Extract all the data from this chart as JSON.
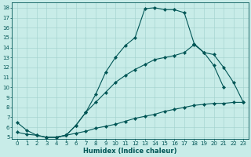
{
  "xlabel": "Humidex (Indice chaleur)",
  "bg_color": "#c8ece8",
  "grid_color": "#a0d0cc",
  "line_color": "#005555",
  "xlim": [
    -0.5,
    23.5
  ],
  "ylim": [
    4.8,
    18.5
  ],
  "yticks": [
    5,
    6,
    7,
    8,
    9,
    10,
    11,
    12,
    13,
    14,
    15,
    16,
    17,
    18
  ],
  "xticks": [
    0,
    1,
    2,
    3,
    4,
    5,
    6,
    7,
    8,
    9,
    10,
    11,
    12,
    13,
    14,
    15,
    16,
    17,
    18,
    19,
    20,
    21,
    22,
    23
  ],
  "line1_x": [
    0,
    1,
    2,
    3,
    4,
    5,
    6,
    7,
    8,
    9,
    10,
    11,
    12,
    13,
    14,
    15,
    16,
    17,
    18,
    19,
    20,
    21
  ],
  "line1_y": [
    6.5,
    5.7,
    5.2,
    5.0,
    5.0,
    5.2,
    6.2,
    7.5,
    9.3,
    11.5,
    13.0,
    14.2,
    15.0,
    17.9,
    18.0,
    17.8,
    17.8,
    17.5,
    14.4,
    13.5,
    12.2,
    10.0
  ],
  "line2_x": [
    3,
    4,
    5,
    6,
    7,
    8,
    9,
    10,
    11,
    12,
    13,
    14,
    15,
    16,
    17,
    18,
    19,
    20,
    21,
    22,
    23
  ],
  "line2_y": [
    5.0,
    5.0,
    5.2,
    6.2,
    7.5,
    8.5,
    9.5,
    10.5,
    11.2,
    11.8,
    12.3,
    12.8,
    13.0,
    13.2,
    13.5,
    14.3,
    13.5,
    13.3,
    12.0,
    10.5,
    8.5
  ],
  "line3_x": [
    0,
    1,
    2,
    3,
    4,
    5,
    6,
    7,
    8,
    9,
    10,
    11,
    12,
    13,
    14,
    15,
    16,
    17,
    18,
    19,
    20,
    21,
    22,
    23
  ],
  "line3_y": [
    5.5,
    5.3,
    5.2,
    5.0,
    5.0,
    5.2,
    5.4,
    5.6,
    5.9,
    6.1,
    6.3,
    6.6,
    6.9,
    7.1,
    7.3,
    7.6,
    7.8,
    8.0,
    8.2,
    8.3,
    8.4,
    8.4,
    8.5,
    8.5
  ]
}
